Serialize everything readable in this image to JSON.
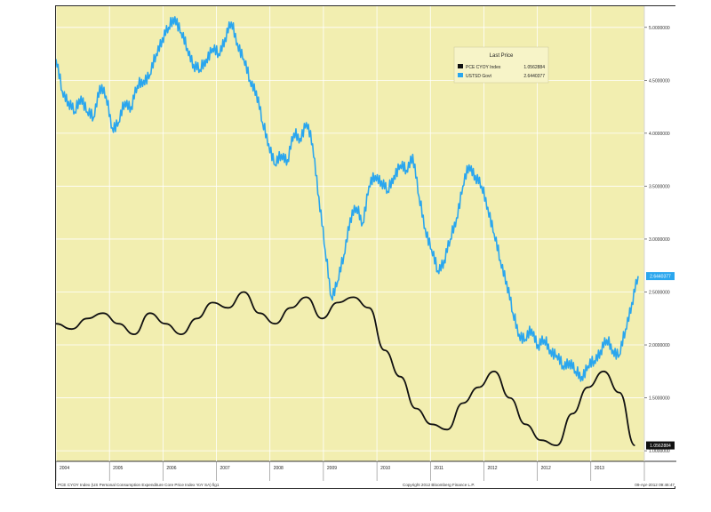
{
  "chart_data": {
    "type": "line",
    "legend": {
      "title": "Last Price",
      "position": "top-right",
      "entries": [
        {
          "name": "PCE CYOY Index",
          "value": "1.0562884",
          "color": "#111111"
        },
        {
          "name": "USTSD Govt",
          "value": "2.6440377",
          "color": "#2aa6ee"
        }
      ]
    },
    "x_labels": [
      "2004",
      "2005",
      "2006",
      "2007",
      "2008",
      "2009",
      "2010",
      "2011",
      "2012",
      "2012",
      "2013"
    ],
    "y_ticks": [
      "5.0000000",
      "4.5000000",
      "4.0000000",
      "3.5000000",
      "3.0000000",
      "2.5000000",
      "2.0000000",
      "1.5000000",
      "1.0000000"
    ],
    "ylim": [
      0.9,
      5.2
    ],
    "grid": true,
    "last_value_labels": [
      "2.6440377",
      "1.0562884"
    ],
    "footer_left": "PCE CYOY Index (US Personal Consumption Expenditure Core Price Index YoY SA) fig1",
    "footer_center": "Copyright 2012 Bloomberg Finance L.P.",
    "footer_right": "09-Apr-2012 09:46:47",
    "series": [
      {
        "name": "USTSD Govt",
        "color": "#2aa6ee",
        "x": [
          2004.0,
          2004.1,
          2004.2,
          2004.3,
          2004.4,
          2004.5,
          2004.6,
          2004.7,
          2004.8,
          2004.9,
          2005.0,
          2005.1,
          2005.2,
          2005.3,
          2005.4,
          2005.5,
          2005.6,
          2005.7,
          2005.8,
          2005.9,
          2006.0,
          2006.1,
          2006.2,
          2006.3,
          2006.4,
          2006.5,
          2006.6,
          2006.7,
          2006.8,
          2006.9,
          2007.0,
          2007.1,
          2007.2,
          2007.3,
          2007.4,
          2007.5,
          2007.6,
          2007.7,
          2007.8,
          2007.9,
          2008.0,
          2008.1,
          2008.2,
          2008.3,
          2008.4,
          2008.5,
          2008.6,
          2008.7,
          2008.8,
          2008.9,
          2009.0,
          2009.1,
          2009.2,
          2009.3,
          2009.4,
          2009.5,
          2009.6,
          2009.7,
          2009.8,
          2009.9,
          2010.0,
          2010.1,
          2010.2,
          2010.3,
          2010.4,
          2010.5,
          2010.6,
          2010.7,
          2010.8,
          2010.9,
          2011.0,
          2011.1,
          2011.2,
          2011.3,
          2011.4,
          2011.5,
          2011.6,
          2011.7,
          2011.8,
          2011.9,
          2012.0,
          2012.1,
          2012.2,
          2012.3,
          2012.4,
          2012.5,
          2012.6,
          2012.7,
          2012.8,
          2012.9,
          2013.0,
          2013.1,
          2013.2,
          2013.3
        ],
        "values": [
          4.7,
          4.4,
          4.3,
          4.2,
          4.35,
          4.2,
          4.15,
          4.45,
          4.35,
          4.05,
          4.1,
          4.3,
          4.25,
          4.45,
          4.5,
          4.55,
          4.75,
          4.9,
          5.0,
          5.1,
          4.95,
          4.8,
          4.65,
          4.6,
          4.7,
          4.8,
          4.75,
          4.9,
          5.05,
          4.85,
          4.7,
          4.5,
          4.4,
          4.1,
          3.9,
          3.7,
          3.8,
          3.75,
          4.0,
          3.95,
          4.1,
          3.9,
          3.4,
          2.9,
          2.45,
          2.6,
          2.85,
          3.2,
          3.3,
          3.15,
          3.5,
          3.6,
          3.55,
          3.45,
          3.6,
          3.7,
          3.65,
          3.8,
          3.4,
          3.1,
          2.9,
          2.7,
          2.8,
          3.0,
          3.2,
          3.5,
          3.7,
          3.6,
          3.5,
          3.3,
          3.05,
          2.8,
          2.6,
          2.3,
          2.1,
          2.05,
          2.15,
          2.0,
          2.05,
          1.95,
          1.9,
          1.8,
          1.85,
          1.75,
          1.7,
          1.8,
          1.85,
          1.95,
          2.05,
          1.95,
          1.9,
          2.15,
          2.4,
          2.65
        ]
      },
      {
        "name": "PCE CYOY Index",
        "color": "#111111",
        "x": [
          2004.0,
          2004.25,
          2004.5,
          2004.75,
          2005.0,
          2005.25,
          2005.5,
          2005.75,
          2006.0,
          2006.25,
          2006.5,
          2006.75,
          2007.0,
          2007.25,
          2007.5,
          2007.75,
          2008.0,
          2008.25,
          2008.5,
          2008.75,
          2009.0,
          2009.25,
          2009.5,
          2009.75,
          2010.0,
          2010.25,
          2010.5,
          2010.75,
          2011.0,
          2011.25,
          2011.5,
          2011.75,
          2012.0,
          2012.25,
          2012.5,
          2012.75,
          2013.0,
          2013.25
        ],
        "values": [
          2.2,
          2.15,
          2.25,
          2.3,
          2.2,
          2.1,
          2.3,
          2.2,
          2.1,
          2.25,
          2.4,
          2.35,
          2.5,
          2.3,
          2.2,
          2.35,
          2.45,
          2.25,
          2.4,
          2.45,
          2.35,
          1.95,
          1.7,
          1.4,
          1.25,
          1.2,
          1.45,
          1.6,
          1.75,
          1.5,
          1.25,
          1.1,
          1.05,
          1.35,
          1.6,
          1.75,
          1.55,
          1.05
        ]
      }
    ]
  }
}
